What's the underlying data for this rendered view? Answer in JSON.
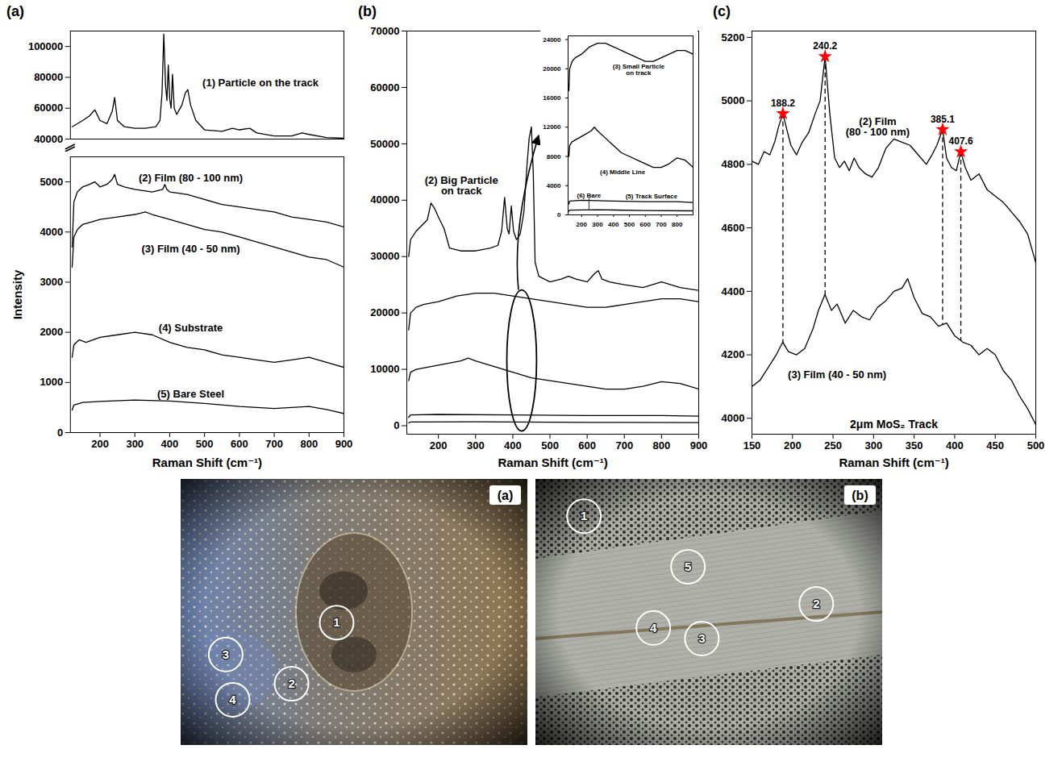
{
  "chart_data": [
    {
      "panel": "(a)",
      "type": "line",
      "xlabel": "Raman Shift (cm⁻¹)",
      "ylabel": "Intensity",
      "xlim": [
        115,
        900
      ],
      "xticks": [
        200,
        300,
        400,
        500,
        600,
        700,
        800,
        900
      ],
      "ylim": [
        0,
        5500
      ],
      "yticks": [
        0,
        1000,
        2000,
        3000,
        4000,
        5000
      ],
      "y2lim": [
        40000,
        110000
      ],
      "y2ticks": [
        40000,
        60000,
        80000,
        100000
      ],
      "series": [
        {
          "name": "(1) Particle on the track",
          "color": "#000000",
          "axis": "y2",
          "x": [
            120,
            150,
            170,
            185,
            200,
            220,
            235,
            242,
            250,
            270,
            300,
            330,
            360,
            372,
            378,
            383,
            388,
            392,
            396,
            400,
            404,
            408,
            413,
            420,
            435,
            445,
            452,
            460,
            475,
            500,
            550,
            580,
            600,
            630,
            650,
            700,
            750,
            780,
            800,
            850,
            900
          ],
          "values": [
            48000,
            52000,
            55000,
            59000,
            52000,
            50000,
            58000,
            67000,
            52000,
            48000,
            47000,
            47000,
            48000,
            52000,
            70000,
            108000,
            75000,
            65000,
            88000,
            66000,
            60000,
            82000,
            60000,
            56000,
            62000,
            70000,
            72000,
            62000,
            52000,
            46000,
            45000,
            47000,
            46000,
            47000,
            44000,
            42000,
            42000,
            44000,
            43000,
            41000,
            40500
          ]
        },
        {
          "name": "(2) Film (80 - 100 nm)",
          "color": "#000000",
          "x": [
            120,
            125,
            135,
            150,
            170,
            185,
            200,
            220,
            235,
            242,
            250,
            270,
            300,
            350,
            380,
            386,
            392,
            400,
            450,
            500,
            550,
            600,
            650,
            700,
            750,
            800,
            850,
            900
          ],
          "values": [
            3700,
            4600,
            4800,
            4900,
            4950,
            5000,
            4900,
            4950,
            5050,
            5150,
            4950,
            4900,
            4850,
            4800,
            4850,
            4950,
            4850,
            4800,
            4750,
            4650,
            4550,
            4500,
            4450,
            4400,
            4300,
            4250,
            4200,
            4100
          ]
        },
        {
          "name": "(3) Film (40 - 50 nm)",
          "color": "#000000",
          "x": [
            120,
            125,
            135,
            150,
            175,
            200,
            250,
            300,
            330,
            350,
            400,
            450,
            500,
            550,
            600,
            650,
            700,
            750,
            800,
            850,
            900
          ],
          "values": [
            3300,
            3900,
            4050,
            4150,
            4200,
            4250,
            4300,
            4350,
            4400,
            4350,
            4250,
            4150,
            4050,
            4000,
            3900,
            3800,
            3700,
            3600,
            3500,
            3450,
            3300
          ]
        },
        {
          "name": "(4) Substrate",
          "color": "#000000",
          "x": [
            120,
            125,
            140,
            160,
            200,
            250,
            300,
            350,
            400,
            450,
            500,
            550,
            600,
            650,
            700,
            750,
            800,
            850,
            900
          ],
          "values": [
            1500,
            1750,
            1850,
            1800,
            1900,
            1950,
            2000,
            1950,
            1800,
            1700,
            1650,
            1550,
            1500,
            1450,
            1400,
            1450,
            1500,
            1400,
            1300
          ]
        },
        {
          "name": "(5) Bare Steel",
          "color": "#000000",
          "x": [
            120,
            125,
            150,
            200,
            300,
            400,
            500,
            600,
            700,
            800,
            850,
            900
          ],
          "values": [
            450,
            550,
            600,
            620,
            650,
            630,
            580,
            520,
            480,
            520,
            460,
            380
          ]
        }
      ]
    },
    {
      "panel": "(b)",
      "type": "line",
      "xlabel": "Raman Shift (cm⁻¹)",
      "xlim": [
        115,
        900
      ],
      "xticks": [
        200,
        300,
        400,
        500,
        600,
        700,
        800,
        900
      ],
      "ylim": [
        -1500,
        70000
      ],
      "yticks": [
        0,
        10000,
        20000,
        30000,
        40000,
        50000,
        60000,
        70000
      ],
      "series": [
        {
          "name": "(2) Big Particle on track",
          "color": "#000000",
          "x": [
            120,
            125,
            140,
            155,
            170,
            180,
            190,
            200,
            215,
            230,
            260,
            300,
            340,
            360,
            370,
            378,
            385,
            390,
            396,
            402,
            410,
            420,
            430,
            438,
            444,
            450,
            455,
            460,
            470,
            500,
            530,
            550,
            570,
            600,
            620,
            630,
            640,
            660,
            700,
            750,
            800,
            850,
            900
          ],
          "values": [
            30000,
            33000,
            34500,
            35500,
            36500,
            39500,
            38500,
            37000,
            35000,
            31500,
            31000,
            31000,
            31500,
            32000,
            34500,
            40500,
            35000,
            34000,
            39000,
            34500,
            33000,
            34000,
            38000,
            46000,
            51000,
            53000,
            45000,
            29000,
            26500,
            25500,
            26000,
            26500,
            26000,
            25500,
            27000,
            27500,
            26000,
            25500,
            25000,
            24500,
            25500,
            24500,
            24000
          ]
        },
        {
          "name": "(3) Small Particle on track",
          "color": "#000000",
          "x": [
            120,
            125,
            140,
            160,
            200,
            250,
            300,
            350,
            400,
            450,
            500,
            550,
            600,
            650,
            700,
            750,
            800,
            850,
            900
          ],
          "values": [
            17000,
            20000,
            21000,
            21500,
            22000,
            23000,
            23500,
            23500,
            23000,
            22500,
            22000,
            21500,
            21000,
            21000,
            21500,
            22000,
            22500,
            22500,
            22000
          ]
        },
        {
          "name": "(4) Middle Line",
          "color": "#000000",
          "x": [
            120,
            125,
            140,
            180,
            220,
            260,
            280,
            300,
            350,
            400,
            450,
            500,
            550,
            600,
            650,
            700,
            750,
            800,
            850,
            900
          ],
          "values": [
            8000,
            9500,
            10000,
            10500,
            11000,
            11500,
            12000,
            11500,
            10500,
            9500,
            8500,
            8000,
            7500,
            7000,
            6500,
            6500,
            7000,
            7800,
            7500,
            6500
          ]
        },
        {
          "name": "(5) Track Surface",
          "color": "#000000",
          "x": [
            120,
            125,
            200,
            400,
            600,
            800,
            900
          ],
          "values": [
            1500,
            1900,
            2000,
            1900,
            1800,
            1800,
            1700
          ]
        },
        {
          "name": "(6) Bare",
          "color": "#000000",
          "x": [
            120,
            125,
            300,
            600,
            900
          ],
          "values": [
            500,
            650,
            700,
            600,
            550
          ]
        }
      ],
      "inset": {
        "xlim": [
          115,
          900
        ],
        "xticks": [
          200,
          300,
          400,
          500,
          600,
          700,
          800
        ],
        "ylim": [
          0,
          24500
        ],
        "yticks": [
          0,
          4000,
          8000,
          12000,
          16000,
          20000,
          24000
        ],
        "series": [
          "(3) Small Particle on track",
          "(4) Middle Line",
          "(5) Track Surface",
          "(6) Bare"
        ]
      }
    },
    {
      "panel": "(c)",
      "type": "line",
      "xlabel": "Raman Shift (cm⁻¹)",
      "xlim": [
        150,
        500
      ],
      "xticks": [
        150,
        200,
        250,
        300,
        350,
        400,
        450,
        500
      ],
      "ylim": [
        3950,
        5220
      ],
      "yticks": [
        4000,
        4200,
        4400,
        4600,
        4800,
        5000,
        5200
      ],
      "series": [
        {
          "name": "(2) Film (80 - 100 nm)",
          "color": "#000000",
          "x": [
            150,
            158,
            165,
            172,
            178,
            183,
            188.2,
            193,
            198,
            205,
            212,
            220,
            228,
            234,
            240.2,
            246,
            252,
            258,
            264,
            270,
            276,
            282,
            290,
            298,
            306,
            315,
            325,
            335,
            345,
            355,
            365,
            372,
            378,
            385.1,
            390,
            396,
            402,
            407.6,
            413,
            420,
            430,
            440,
            450,
            460,
            470,
            480,
            490,
            500
          ],
          "values": [
            4810,
            4800,
            4840,
            4830,
            4870,
            4920,
            4960,
            4910,
            4860,
            4830,
            4870,
            4900,
            4960,
            5000,
            5140,
            4960,
            4820,
            4790,
            4810,
            4780,
            4820,
            4790,
            4770,
            4760,
            4790,
            4850,
            4880,
            4870,
            4860,
            4830,
            4800,
            4830,
            4860,
            4910,
            4820,
            4790,
            4780,
            4840,
            4790,
            4750,
            4770,
            4720,
            4700,
            4680,
            4650,
            4620,
            4580,
            4490
          ]
        },
        {
          "name": "(3) Film (40 - 50 nm)",
          "color": "#000000",
          "x": [
            150,
            160,
            170,
            180,
            188,
            195,
            205,
            215,
            225,
            232,
            240,
            248,
            255,
            265,
            275,
            285,
            295,
            305,
            315,
            325,
            335,
            342,
            350,
            360,
            370,
            380,
            390,
            400,
            410,
            420,
            430,
            440,
            450,
            460,
            470,
            480,
            490,
            500
          ],
          "values": [
            4100,
            4120,
            4160,
            4200,
            4240,
            4210,
            4200,
            4220,
            4280,
            4340,
            4390,
            4340,
            4360,
            4300,
            4340,
            4320,
            4310,
            4350,
            4370,
            4400,
            4410,
            4440,
            4380,
            4330,
            4320,
            4290,
            4300,
            4260,
            4240,
            4230,
            4200,
            4220,
            4200,
            4150,
            4120,
            4070,
            4030,
            3980
          ]
        }
      ],
      "peaks": {
        "x": [
          188.2,
          240.2,
          385.1,
          407.6
        ],
        "color": "#ff0000",
        "marker": "star"
      },
      "annotation": "2μm MoS₂ Track"
    }
  ],
  "micrographs": [
    {
      "panel": "(a)",
      "markers": [
        "1",
        "2",
        "3",
        "4"
      ]
    },
    {
      "panel": "(b)",
      "markers": [
        "1",
        "2",
        "3",
        "4",
        "5"
      ]
    }
  ]
}
